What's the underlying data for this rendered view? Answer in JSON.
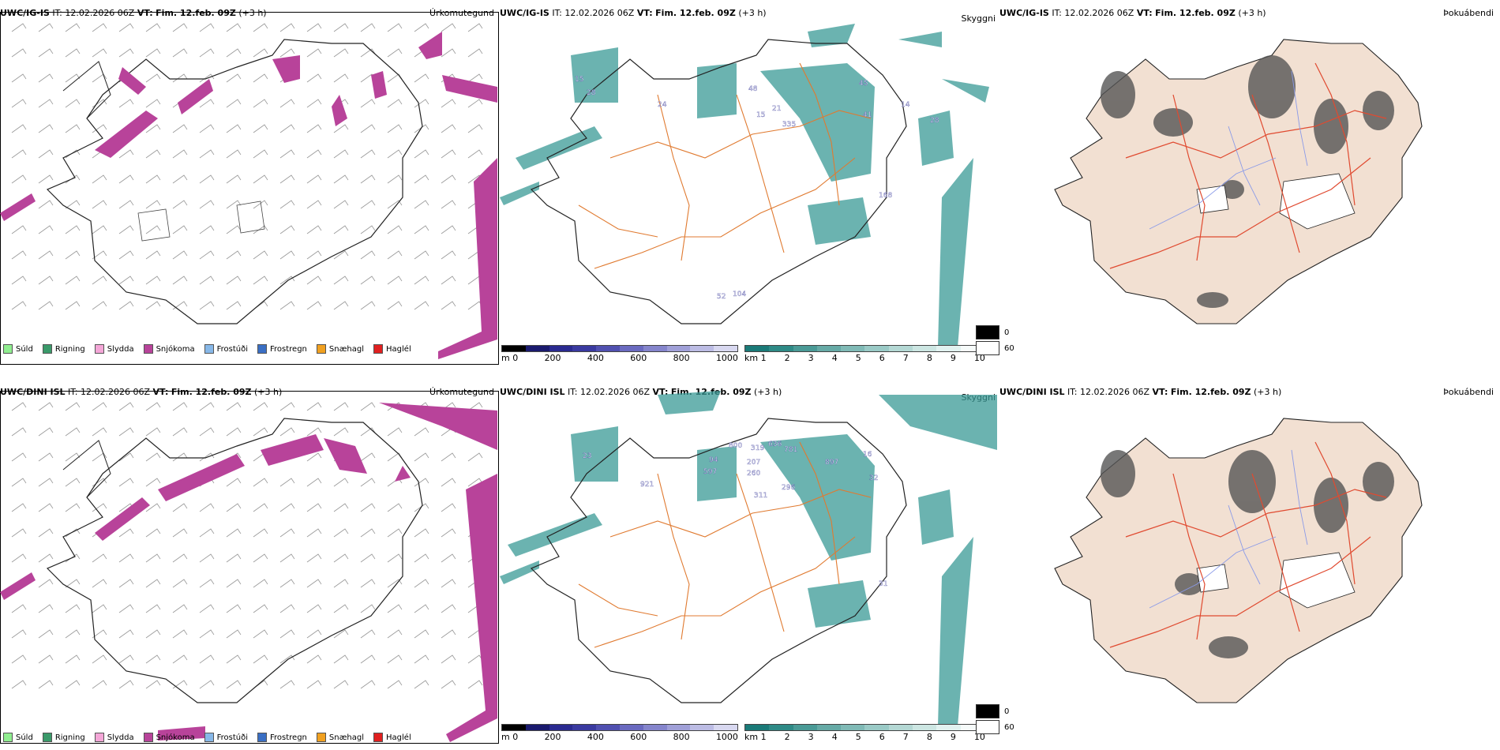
{
  "rows": [
    {
      "panels": [
        {
          "model": "UWC/IG-IS",
          "it_label": "IT:",
          "it_value": "12.02.2026 06Z",
          "vt_label": "VT:",
          "vt_value": "Fim. 12.feb. 09Z",
          "lead": "(+3 h)",
          "title": "Úrkomutegund"
        },
        {
          "model": "UWC/IG-IS",
          "it_label": "IT:",
          "it_value": "12.02.2026 06Z",
          "vt_label": "VT:",
          "vt_value": "Fim. 12.feb. 09Z",
          "lead": "(+3 h)",
          "title": "Skyggni"
        },
        {
          "model": "UWC/IG-IS",
          "it_label": "IT:",
          "it_value": "12.02.2026 06Z",
          "vt_label": "VT:",
          "vt_value": "Fim. 12.feb. 09Z",
          "lead": "(+3 h)",
          "title": "Þokuábendi"
        }
      ],
      "vis_labels": [
        "15",
        "28",
        "24",
        "48",
        "15",
        "21",
        "335",
        "45",
        "41",
        "14",
        "28",
        "168",
        "104",
        "52"
      ]
    },
    {
      "panels": [
        {
          "model": "UWC/DINI ISL",
          "it_label": "IT:",
          "it_value": "12.02.2026 06Z",
          "vt_label": "VT:",
          "vt_value": "Fim. 12.feb. 09Z",
          "lead": "(+3 h)",
          "title": "Úrkomutegund"
        },
        {
          "model": "UWC/DINI ISL",
          "it_label": "IT:",
          "it_value": "12.02.2026 06Z",
          "vt_label": "VT:",
          "vt_value": "Fim. 12.feb. 09Z",
          "lead": "(+3 h)",
          "title": "Skyggni"
        },
        {
          "model": "UWC/DINI ISL",
          "it_label": "IT:",
          "it_value": "12.02.2026 06Z",
          "vt_label": "VT:",
          "vt_value": "Fim. 12.feb. 09Z",
          "lead": "(+3 h)",
          "title": "Þokuábendi"
        }
      ],
      "vis_labels": [
        "23",
        "921",
        "94",
        "597",
        "800",
        "319",
        "636",
        "781",
        "207",
        "260",
        "311",
        "296",
        "897",
        "32",
        "16",
        "31"
      ]
    }
  ],
  "precip_legend": [
    {
      "label": "Súld",
      "color": "#90ee90"
    },
    {
      "label": "Rigning",
      "color": "#3a9a6a"
    },
    {
      "label": "Slydda",
      "color": "#f4a6d7"
    },
    {
      "label": "Snjókoma",
      "color": "#b8439a"
    },
    {
      "label": "Frostúði",
      "color": "#87b8e8"
    },
    {
      "label": "Frostregn",
      "color": "#3a6fc4"
    },
    {
      "label": "Snæhagl",
      "color": "#f0a020"
    },
    {
      "label": "Haglél",
      "color": "#e02020"
    }
  ],
  "vis_colorbars": {
    "ceiling": {
      "unit": "m",
      "ticks": [
        "0",
        "200",
        "400",
        "600",
        "800",
        "1000"
      ],
      "colors": [
        "#000000",
        "#1a1a6e",
        "#2a2a90",
        "#3a3aa0",
        "#5050b0",
        "#6a6ac0",
        "#8585cc",
        "#a0a0d8",
        "#bcbce4",
        "#d8d8f0"
      ]
    },
    "visibility": {
      "unit": "km",
      "ticks": [
        "1",
        "2",
        "3",
        "4",
        "5",
        "6",
        "7",
        "8",
        "9",
        "10"
      ],
      "colors": [
        "#1a7a78",
        "#2e8a86",
        "#4a9a96",
        "#66aaa6",
        "#80bab6",
        "#9acac6",
        "#b4d8d4",
        "#cce6e2",
        "#e2f2f0",
        "#f6fbfa"
      ]
    }
  },
  "fog_key": [
    {
      "label": "0",
      "color": "#000000"
    },
    {
      "label": "60",
      "color": "#ffffff"
    }
  ],
  "colors": {
    "snow": "#b8439a",
    "visibility": "#3a9a96",
    "roads": "#e07a30",
    "fog_land": "#f2e0d2",
    "fog_roads": "#e04a30",
    "rivers": "#8a9ae8"
  }
}
